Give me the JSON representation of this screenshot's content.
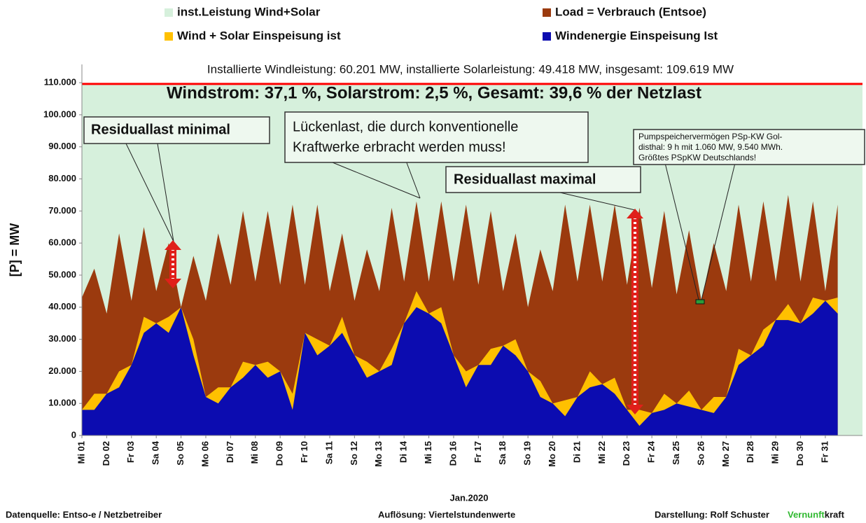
{
  "chart_data": {
    "type": "area",
    "legend": [
      {
        "series": 0
      },
      {
        "series": 1
      },
      {
        "series": 2
      },
      {
        "series": 3
      }
    ],
    "annotations": {
      "installed": "Installierte Windleistung: 60.201 MW, installierte Solarleistung: 49.418 MW, insgesamt: 109.619 MW",
      "shares": "Windstrom: 37,1 %, Solarstrom: 2,5 %, Gesamt: 39,6 % der Netzlast",
      "min": "Residuallast  minimal",
      "gap": [
        "Lückenlast, die durch konventionelle",
        "Kraftwerke erbracht werden muss!"
      ],
      "max": "Residuallast maximal",
      "pump": [
        "Pumpspeichervermögen PSp-KW Gol-",
        "disthal: 9 h mit 1.060 MW, 9.540 MWh.",
        "Größtes PSpKW Deutschlands!"
      ]
    },
    "ylabel": "[P] = MW",
    "xlabel": "Jan.2020",
    "footer": {
      "source": "Datenquelle:  Entso-e  / Netzbetreiber",
      "resolution": "Auflösung: Viertelstundenwerte",
      "author": "Darstellung:  Rolf Schuster",
      "brand1": "Vernunft",
      "brand2": "kraft"
    },
    "capacity": {
      "name": "inst.Leistung Wind+Solar",
      "color": "#d6f0dc",
      "value": 109619,
      "line_color": "#ff0000"
    },
    "x": [
      0,
      0.5,
      1,
      1.5,
      2,
      2.5,
      3,
      3.5,
      4,
      4.5,
      5,
      5.5,
      6,
      6.5,
      7,
      7.5,
      8,
      8.5,
      9,
      9.5,
      10,
      10.5,
      11,
      11.5,
      12,
      12.5,
      13,
      13.5,
      14,
      14.5,
      15,
      15.5,
      16,
      16.5,
      17,
      17.5,
      18,
      18.5,
      19,
      19.5,
      20,
      20.5,
      21,
      21.5,
      22,
      22.5,
      23,
      23.5,
      24,
      24.5,
      25,
      25.5,
      26,
      26.5,
      27,
      27.5,
      28,
      28.5,
      29,
      29.5,
      30,
      30.5
    ],
    "series": [
      {
        "name": "Load =  Verbrauch (Entsoe)",
        "color": "#9b3a0e",
        "values": [
          43000,
          52000,
          38000,
          63000,
          42000,
          65000,
          45000,
          60000,
          40000,
          56000,
          42000,
          63000,
          47000,
          70000,
          48000,
          70000,
          47000,
          72000,
          47000,
          72000,
          45000,
          63000,
          42000,
          58000,
          45000,
          71000,
          48000,
          73000,
          48000,
          73000,
          48000,
          72000,
          47000,
          70000,
          45000,
          63000,
          40000,
          58000,
          45000,
          72000,
          48000,
          72000,
          48000,
          72000,
          47000,
          71000,
          46000,
          70000,
          44000,
          64000,
          42000,
          60000,
          45000,
          72000,
          48000,
          73000,
          48000,
          75000,
          48000,
          73000,
          45000,
          72000
        ]
      },
      {
        "name": "Wind + Solar Einspeisung ist",
        "color": "#ffc000",
        "values": [
          8000,
          13000,
          13000,
          20000,
          22000,
          37000,
          35000,
          37000,
          40000,
          30000,
          12000,
          15000,
          15000,
          23000,
          22000,
          23000,
          20000,
          13000,
          32000,
          30000,
          28000,
          37000,
          25000,
          23000,
          20000,
          27000,
          35000,
          45000,
          38000,
          40000,
          25000,
          20000,
          22000,
          27000,
          28000,
          30000,
          20000,
          17000,
          10000,
          11000,
          12000,
          20000,
          16000,
          18000,
          8000,
          8000,
          7000,
          13000,
          10000,
          14000,
          8000,
          12000,
          12000,
          27000,
          25000,
          33000,
          36000,
          41000,
          35000,
          43000,
          42000,
          43000
        ]
      },
      {
        "name": "Windenergie Einspeisung Ist",
        "color": "#0c0cb0",
        "values": [
          8000,
          8000,
          13000,
          15000,
          22000,
          32000,
          35000,
          32000,
          40000,
          25000,
          12000,
          10000,
          15000,
          18000,
          22000,
          18000,
          20000,
          8000,
          32000,
          25000,
          28000,
          32000,
          25000,
          18000,
          20000,
          22000,
          35000,
          40000,
          38000,
          35000,
          25000,
          15000,
          22000,
          22000,
          28000,
          25000,
          20000,
          12000,
          10000,
          6000,
          12000,
          15000,
          16000,
          13000,
          8000,
          3000,
          7000,
          8000,
          10000,
          9000,
          8000,
          7000,
          12000,
          22000,
          25000,
          28000,
          36000,
          36000,
          35000,
          38000,
          42000,
          38000
        ]
      }
    ],
    "xlim": [
      0,
      31.5
    ],
    "xticks": [
      {
        "value": 0,
        "label": "Mi 01"
      },
      {
        "value": 1,
        "label": "Do 02"
      },
      {
        "value": 2,
        "label": "Fr 03"
      },
      {
        "value": 3,
        "label": "Sa 04"
      },
      {
        "value": 4,
        "label": "So 05"
      },
      {
        "value": 5,
        "label": "Mo 06"
      },
      {
        "value": 6,
        "label": "Di 07"
      },
      {
        "value": 7,
        "label": "Mi 08"
      },
      {
        "value": 8,
        "label": "Do 09"
      },
      {
        "value": 9,
        "label": "Fr 10"
      },
      {
        "value": 10,
        "label": "Sa 11"
      },
      {
        "value": 11,
        "label": "So 12"
      },
      {
        "value": 12,
        "label": "Mo 13"
      },
      {
        "value": 13,
        "label": "Di 14"
      },
      {
        "value": 14,
        "label": "Mi 15"
      },
      {
        "value": 15,
        "label": "Do 16"
      },
      {
        "value": 16,
        "label": "Fr 17"
      },
      {
        "value": 17,
        "label": "Sa 18"
      },
      {
        "value": 18,
        "label": "So 19"
      },
      {
        "value": 19,
        "label": "Mo 20"
      },
      {
        "value": 20,
        "label": "Di 21"
      },
      {
        "value": 21,
        "label": "Mi 22"
      },
      {
        "value": 22,
        "label": "Do 23"
      },
      {
        "value": 23,
        "label": "Fr 24"
      },
      {
        "value": 24,
        "label": "Sa 25"
      },
      {
        "value": 25,
        "label": "So 26"
      },
      {
        "value": 26,
        "label": "Mo 27"
      },
      {
        "value": 27,
        "label": "Di 28"
      },
      {
        "value": 28,
        "label": "Mi 29"
      },
      {
        "value": 29,
        "label": "Do 30"
      },
      {
        "value": 30,
        "label": "Fr 31"
      }
    ],
    "ylim": [
      0,
      115700
    ],
    "yticks": [
      0,
      {
        "value": 10000,
        "label": "10.000"
      },
      {
        "value": 20000,
        "label": "20.000"
      },
      {
        "value": 30000,
        "label": "30.000"
      },
      {
        "value": 40000,
        "label": "40.000"
      },
      {
        "value": 50000,
        "label": "50.000"
      },
      {
        "value": 60000,
        "label": "60.000"
      },
      {
        "value": 70000,
        "label": "70.000"
      },
      {
        "value": 80000,
        "label": "80.000"
      },
      {
        "value": 90000,
        "label": "90.000"
      },
      {
        "value": 100000,
        "label": "100.000"
      },
      {
        "value": 110000,
        "label": "110.000"
      }
    ]
  }
}
